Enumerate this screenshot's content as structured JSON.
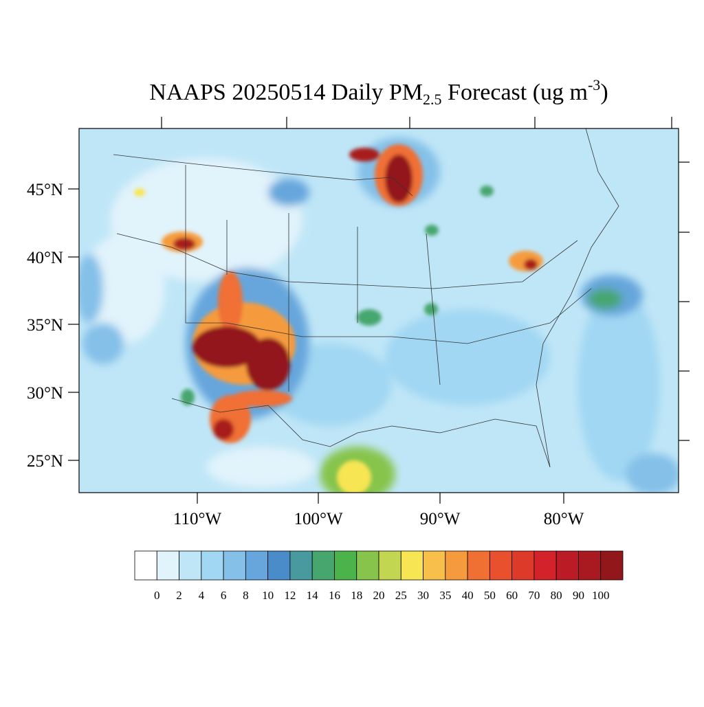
{
  "title": {
    "main": "NAAPS 20250514 Daily PM",
    "subscript": "2.5",
    "middle": " Forecast (ug m",
    "superscript": "-3",
    "end": ")"
  },
  "lat_labels": [
    "45°N",
    "40°N",
    "35°N",
    "30°N",
    "25°N"
  ],
  "lon_labels": [
    "110°W",
    "100°W",
    "90°W",
    "80°W"
  ],
  "colorbar": {
    "levels": [
      0,
      2,
      4,
      6,
      8,
      10,
      12,
      14,
      16,
      18,
      20,
      25,
      30,
      35,
      40,
      50,
      60,
      70,
      80,
      90,
      100
    ],
    "colors": [
      "#ffffff",
      "#e1f3fb",
      "#bfe6f7",
      "#a1d7f3",
      "#84c0e8",
      "#66a6dc",
      "#4a8cca",
      "#489a9e",
      "#46a66e",
      "#4cb34a",
      "#86c44c",
      "#c3d651",
      "#f7e553",
      "#f8c04a",
      "#f59b3e",
      "#f07034",
      "#e8502e",
      "#de3a2a",
      "#d4222a",
      "#bb1b24",
      "#a81a1f",
      "#92171b"
    ]
  }
}
